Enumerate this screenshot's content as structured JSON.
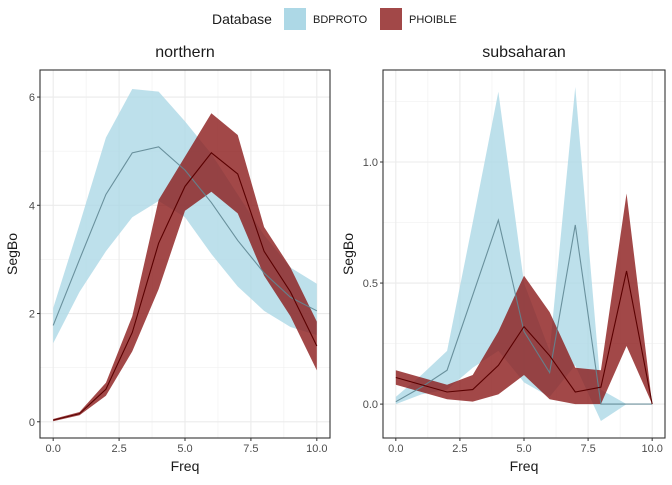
{
  "legend": {
    "title": "Database",
    "position": "top",
    "entries": [
      {
        "name": "BDPROTO",
        "fill": "#add8e6",
        "line": "#5f8793"
      },
      {
        "name": "PHOIBLE",
        "fill": "#8b1a1a",
        "line": "#5a0000"
      }
    ]
  },
  "chart_data": [
    {
      "type": "area",
      "title": "northern",
      "xlabel": "Freq",
      "ylabel": "SegBo",
      "xlim": [
        -0.5,
        10.5
      ],
      "ylim": [
        -0.3,
        6.5
      ],
      "xticks": [
        0,
        2.5,
        5,
        7.5,
        10
      ],
      "xtick_labels": [
        "0.0",
        "2.5",
        "5.0",
        "7.5",
        "10.0"
      ],
      "yticks": [
        0,
        2,
        4,
        6
      ],
      "ytick_labels": [
        "0",
        "2",
        "4",
        "6"
      ],
      "grid": true,
      "x": [
        0,
        1,
        2,
        3,
        4,
        5,
        6,
        7,
        8,
        9,
        10
      ],
      "series": [
        {
          "name": "BDPROTO",
          "mean": [
            1.78,
            3.0,
            4.2,
            4.97,
            5.08,
            4.65,
            4.05,
            3.35,
            2.75,
            2.3,
            2.05
          ],
          "lower": [
            1.45,
            2.4,
            3.15,
            3.78,
            4.08,
            3.78,
            3.1,
            2.5,
            2.05,
            1.75,
            1.6
          ],
          "upper": [
            2.1,
            3.65,
            5.25,
            6.15,
            6.1,
            5.55,
            4.95,
            4.2,
            3.45,
            2.85,
            2.55
          ]
        },
        {
          "name": "PHOIBLE",
          "mean": [
            0.03,
            0.15,
            0.6,
            1.65,
            3.3,
            4.35,
            4.97,
            4.58,
            3.15,
            2.4,
            1.4
          ],
          "lower": [
            0.01,
            0.12,
            0.48,
            1.3,
            2.45,
            3.9,
            4.25,
            3.85,
            2.7,
            1.95,
            0.95
          ],
          "upper": [
            0.05,
            0.18,
            0.72,
            1.95,
            4.1,
            4.9,
            5.7,
            5.3,
            3.6,
            2.85,
            1.85
          ]
        }
      ]
    },
    {
      "type": "area",
      "title": "subsaharan",
      "xlabel": "Freq",
      "ylabel": "SegBo",
      "xlim": [
        -0.5,
        10.5
      ],
      "ylim": [
        -0.14,
        1.38
      ],
      "xticks": [
        0,
        2.5,
        5,
        7.5,
        10
      ],
      "xtick_labels": [
        "0.0",
        "2.5",
        "5.0",
        "7.5",
        "10.0"
      ],
      "yticks": [
        0,
        0.5,
        1
      ],
      "ytick_labels": [
        "0.0",
        "0.5",
        "1.0"
      ],
      "grid": true,
      "x": [
        0,
        1,
        2,
        3,
        4,
        5,
        6,
        7,
        8,
        9,
        10
      ],
      "series": [
        {
          "name": "BDPROTO",
          "mean": [
            0.01,
            0.07,
            0.14,
            0.45,
            0.76,
            0.3,
            0.13,
            0.74,
            0.0,
            0.0,
            0.0
          ],
          "lower": [
            0.0,
            0.04,
            0.06,
            0.15,
            0.22,
            0.09,
            0.03,
            0.16,
            -0.07,
            0.0,
            0.0
          ],
          "upper": [
            0.03,
            0.12,
            0.22,
            0.75,
            1.29,
            0.5,
            0.22,
            1.31,
            0.06,
            0.0,
            0.0
          ]
        },
        {
          "name": "PHOIBLE",
          "mean": [
            0.11,
            0.08,
            0.05,
            0.06,
            0.16,
            0.32,
            0.2,
            0.05,
            0.07,
            0.55,
            0.0
          ],
          "lower": [
            0.08,
            0.05,
            0.02,
            0.01,
            0.04,
            0.12,
            0.02,
            0.0,
            0.0,
            0.24,
            0.0
          ],
          "upper": [
            0.14,
            0.11,
            0.08,
            0.12,
            0.3,
            0.53,
            0.38,
            0.15,
            0.14,
            0.87,
            0.0
          ]
        }
      ]
    }
  ]
}
